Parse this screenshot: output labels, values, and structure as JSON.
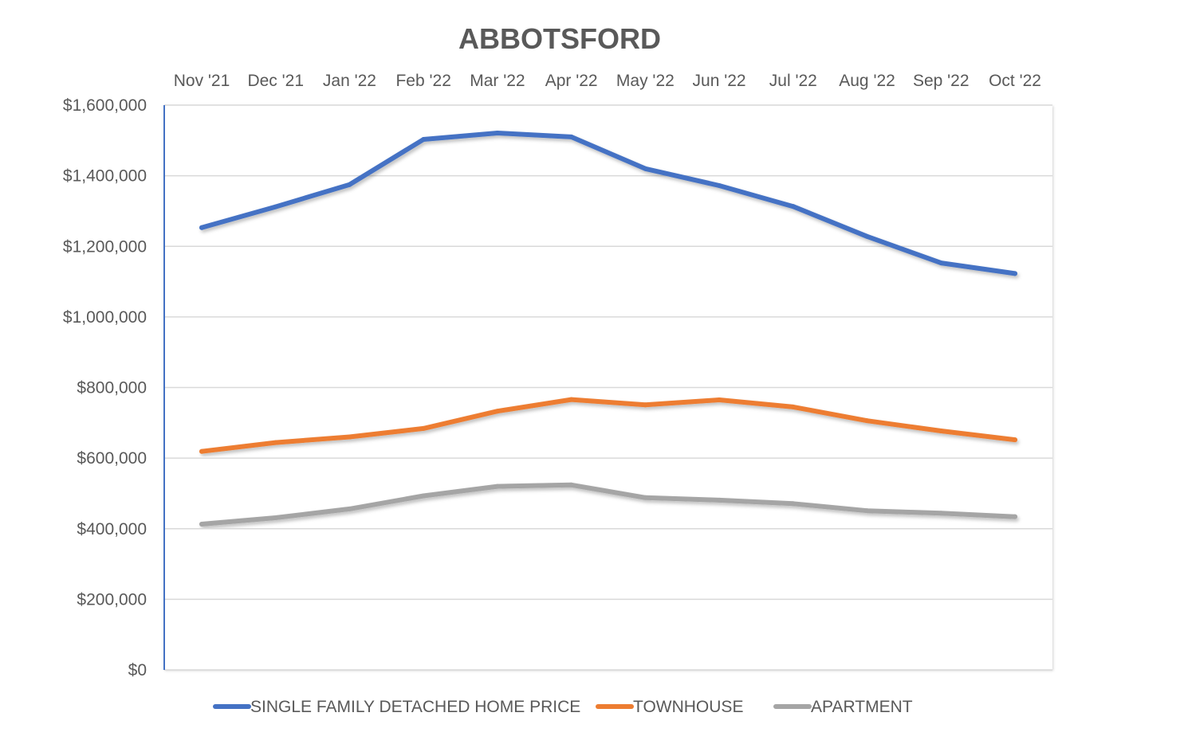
{
  "chart_data": {
    "type": "line",
    "title": "ABBOTSFORD",
    "categories": [
      "Nov '21",
      "Dec '21",
      "Jan '22",
      "Feb '22",
      "Mar '22",
      "Apr '22",
      "May '22",
      "Jun '22",
      "Jul '22",
      "Aug '22",
      "Sep '22",
      "Oct '22"
    ],
    "series": [
      {
        "name": "SINGLE FAMILY DETACHED HOME PRICE",
        "color": "#4472C4",
        "values": [
          1253000,
          1312000,
          1375000,
          1503000,
          1521000,
          1510000,
          1420000,
          1372000,
          1313000,
          1228000,
          1153000,
          1123000
        ]
      },
      {
        "name": "TOWNHOUSE",
        "color": "#ED7D31",
        "values": [
          619000,
          644000,
          660000,
          684000,
          733000,
          766000,
          751000,
          765000,
          745000,
          706000,
          677000,
          652000
        ]
      },
      {
        "name": "APARTMENT",
        "color": "#A5A5A5",
        "values": [
          413000,
          431000,
          456000,
          493000,
          520000,
          524000,
          488000,
          481000,
          471000,
          451000,
          444000,
          434000
        ]
      }
    ],
    "ylim": [
      0,
      1600000
    ],
    "yticks": [
      0,
      200000,
      400000,
      600000,
      800000,
      1000000,
      1200000,
      1400000,
      1600000
    ],
    "ytick_labels": [
      "$0",
      "$200,000",
      "$400,000",
      "$600,000",
      "$800,000",
      "$1,000,000",
      "$1,200,000",
      "$1,400,000",
      "$1,600,000"
    ],
    "xaxis_position": "top",
    "grid": true,
    "legend_position": "bottom"
  }
}
